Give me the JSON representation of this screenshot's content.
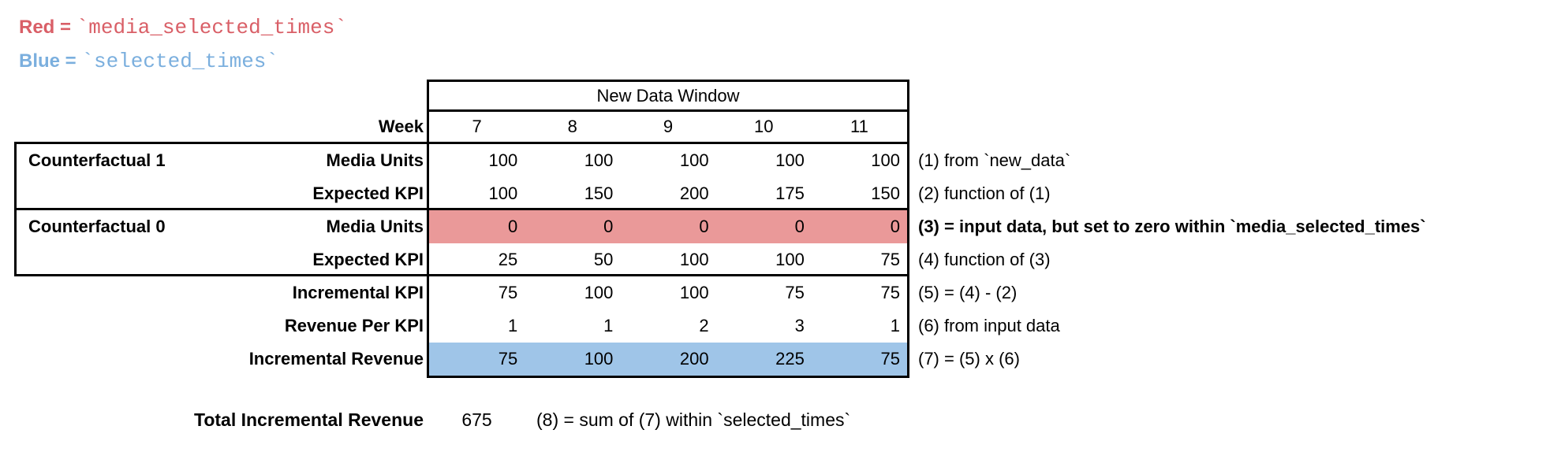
{
  "colors": {
    "legend_red": "#d95f67",
    "legend_blue": "#7bafde",
    "fill_red": "#ea9999",
    "fill_blue": "#9fc5e8",
    "border": "#000000"
  },
  "legend": {
    "red": {
      "label": "Red",
      "equals": " = ",
      "code": "`media_selected_times`"
    },
    "blue": {
      "label": "Blue",
      "equals": " = ",
      "code": "`selected_times`"
    }
  },
  "table": {
    "header": "New Data Window",
    "week_label": "Week",
    "weeks": [
      "7",
      "8",
      "9",
      "10",
      "11"
    ],
    "groups": [
      {
        "label": "Counterfactual 1"
      },
      {
        "label": "Counterfactual 0"
      }
    ],
    "rows": [
      {
        "label": "Media Units",
        "values": [
          "100",
          "100",
          "100",
          "100",
          "100"
        ],
        "note": "(1) from `new_data`"
      },
      {
        "label": "Expected KPI",
        "values": [
          "100",
          "150",
          "200",
          "175",
          "150"
        ],
        "note": "(2) function of (1)"
      },
      {
        "label": "Media Units",
        "values": [
          "0",
          "0",
          "0",
          "0",
          "0"
        ],
        "note": "(3) = input data, but set to zero within `media_selected_times`",
        "highlight": "red"
      },
      {
        "label": "Expected KPI",
        "values": [
          "25",
          "50",
          "100",
          "100",
          "75"
        ],
        "note": "(4) function of (3)"
      },
      {
        "label": "Incremental KPI",
        "values": [
          "75",
          "100",
          "100",
          "75",
          "75"
        ],
        "note": "(5) = (4) - (2)"
      },
      {
        "label": "Revenue Per KPI",
        "values": [
          "1",
          "1",
          "2",
          "3",
          "1"
        ],
        "note": "(6) from input data"
      },
      {
        "label": "Incremental Revenue",
        "values": [
          "75",
          "100",
          "200",
          "225",
          "75"
        ],
        "note": "(7) = (5) x (6)",
        "highlight": "blue"
      }
    ]
  },
  "total": {
    "label": "Total Incremental Revenue",
    "value": "675",
    "note": "(8) = sum of (7) within `selected_times`"
  }
}
